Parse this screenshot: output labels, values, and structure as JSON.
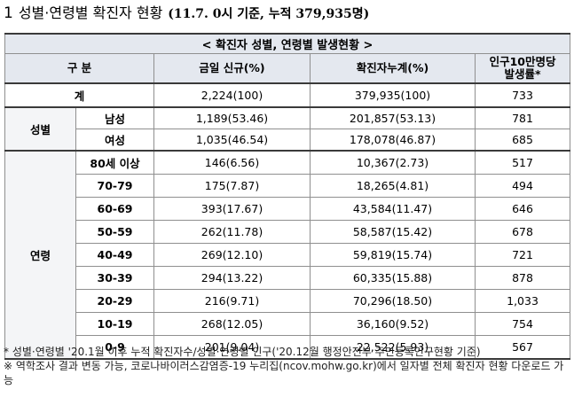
{
  "heading": {
    "number": "1",
    "title": "성별·연령별 확진자 현황",
    "subtitle": "(11.7. 0시 기준, 누적 379,935명)"
  },
  "table": {
    "caption": "< 확진자 성별, 연령별 발생현황 >",
    "columns": {
      "category": "구 분",
      "daily": "금일 신규(%)",
      "cumulative": "확진자누계(%)",
      "rate_line1": "인구10만명당",
      "rate_line2": "발생률*"
    },
    "total": {
      "label": "계",
      "daily": "2,224(100)",
      "cumulative": "379,935(100)",
      "rate": "733"
    },
    "gender": {
      "label": "성별",
      "rows": [
        {
          "label": "남성",
          "daily": "1,189(53.46)",
          "cumulative": "201,857(53.13)",
          "rate": "781"
        },
        {
          "label": "여성",
          "daily": "1,035(46.54)",
          "cumulative": "178,078(46.87)",
          "rate": "685"
        }
      ]
    },
    "age": {
      "label": "연령",
      "rows": [
        {
          "label": "80세 이상",
          "daily": "146(6.56)",
          "cumulative": "10,367(2.73)",
          "rate": "517"
        },
        {
          "label": "70-79",
          "daily": "175(7.87)",
          "cumulative": "18,265(4.81)",
          "rate": "494"
        },
        {
          "label": "60-69",
          "daily": "393(17.67)",
          "cumulative": "43,584(11.47)",
          "rate": "646"
        },
        {
          "label": "50-59",
          "daily": "262(11.78)",
          "cumulative": "58,587(15.42)",
          "rate": "678"
        },
        {
          "label": "40-49",
          "daily": "269(12.10)",
          "cumulative": "59,819(15.74)",
          "rate": "721"
        },
        {
          "label": "30-39",
          "daily": "294(13.22)",
          "cumulative": "60,335(15.88)",
          "rate": "878"
        },
        {
          "label": "20-29",
          "daily": "216(9.71)",
          "cumulative": "70,296(18.50)",
          "rate": "1,033"
        },
        {
          "label": "10-19",
          "daily": "268(12.05)",
          "cumulative": "36,160(9.52)",
          "rate": "754"
        },
        {
          "label": "0-9",
          "daily": "201(9.04)",
          "cumulative": "22,522(5.93)",
          "rate": "567"
        }
      ]
    }
  },
  "notes": [
    "* 성별·연령별 '20.1월 이후 누적 확진자수/성별·연령별 인구('20.12월 행정안전부 주민등록인구현황 기준)",
    "※ 역학조사 결과 변동 가능, 코로나바이러스감염증-19 누리집(ncov.mohw.go.kr)에서 일자별 전체 확진자 현황 다운로드 가능"
  ]
}
